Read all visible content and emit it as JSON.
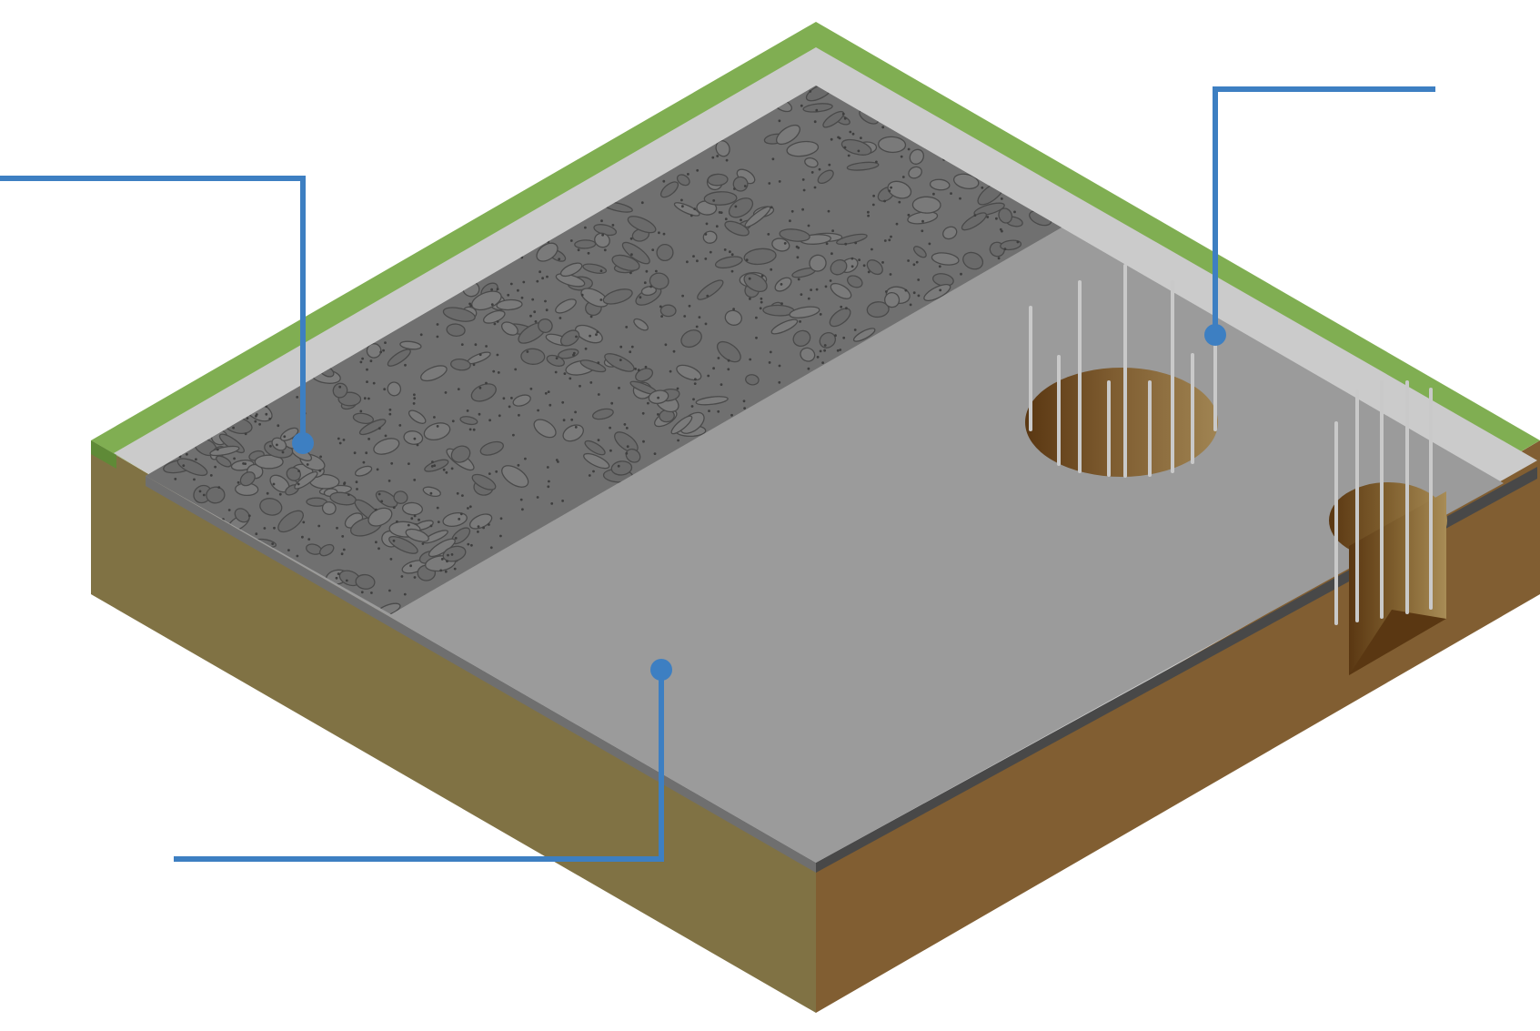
{
  "diagram": {
    "kind": "isometric ground cross-section",
    "layers": [
      {
        "id": "turf",
        "color": "#80AE52"
      },
      {
        "id": "slab-border",
        "color": "#CBCBCB"
      },
      {
        "id": "gravel",
        "color": "#707070"
      },
      {
        "id": "concrete-slab",
        "color": "#9B9B9B"
      },
      {
        "id": "soil-left",
        "color": "#807244"
      },
      {
        "id": "soil-right",
        "color": "#815E32"
      }
    ],
    "features": [
      {
        "id": "pile-hole-with-rebar-1",
        "rebar_count": 9
      },
      {
        "id": "pile-hole-with-rebar-2",
        "rebar_count": 5,
        "cutaway": true
      }
    ],
    "callouts": [
      {
        "id": "callout-gravel",
        "label": ""
      },
      {
        "id": "callout-rebar",
        "label": ""
      },
      {
        "id": "callout-slab",
        "label": ""
      }
    ],
    "colors": {
      "leader_line": "#3D7FC2",
      "rebar": "#C9C9C9",
      "pit_dark": "#5A3712",
      "pit_light": "#A08452"
    }
  }
}
